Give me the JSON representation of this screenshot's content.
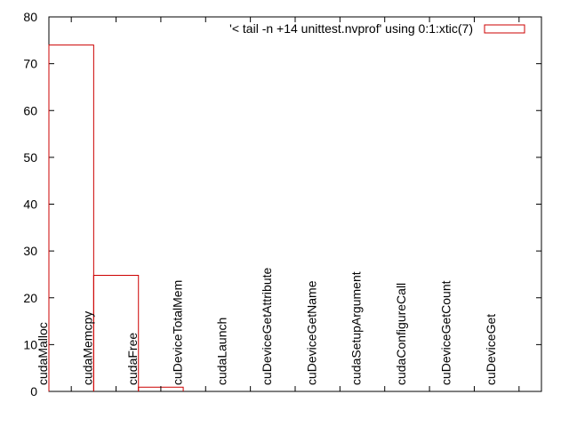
{
  "chart_data": {
    "type": "bar",
    "style": "steps",
    "categories": [
      "cudaMalloc",
      "cudaMemcpy",
      "cudaFree",
      "cuDeviceTotalMem",
      "cudaLaunch",
      "cuDeviceGetAttribute",
      "cuDeviceGetName",
      "cudaSetupArgument",
      "cudaConfigureCall",
      "cuDeviceGetCount",
      "cuDeviceGet"
    ],
    "series": [
      {
        "name": "'< tail -n +14 unittest.nvprof' using 0:1:xtic(7)",
        "values": [
          74,
          24.8,
          0.9,
          0,
          0,
          0,
          0,
          0,
          0,
          0,
          0
        ],
        "color": "#cc0000"
      }
    ],
    "yticks": [
      0,
      10,
      20,
      30,
      40,
      50,
      60,
      70,
      80
    ],
    "ylim": [
      0,
      80
    ],
    "grid": false,
    "legend_position": "top-right"
  }
}
